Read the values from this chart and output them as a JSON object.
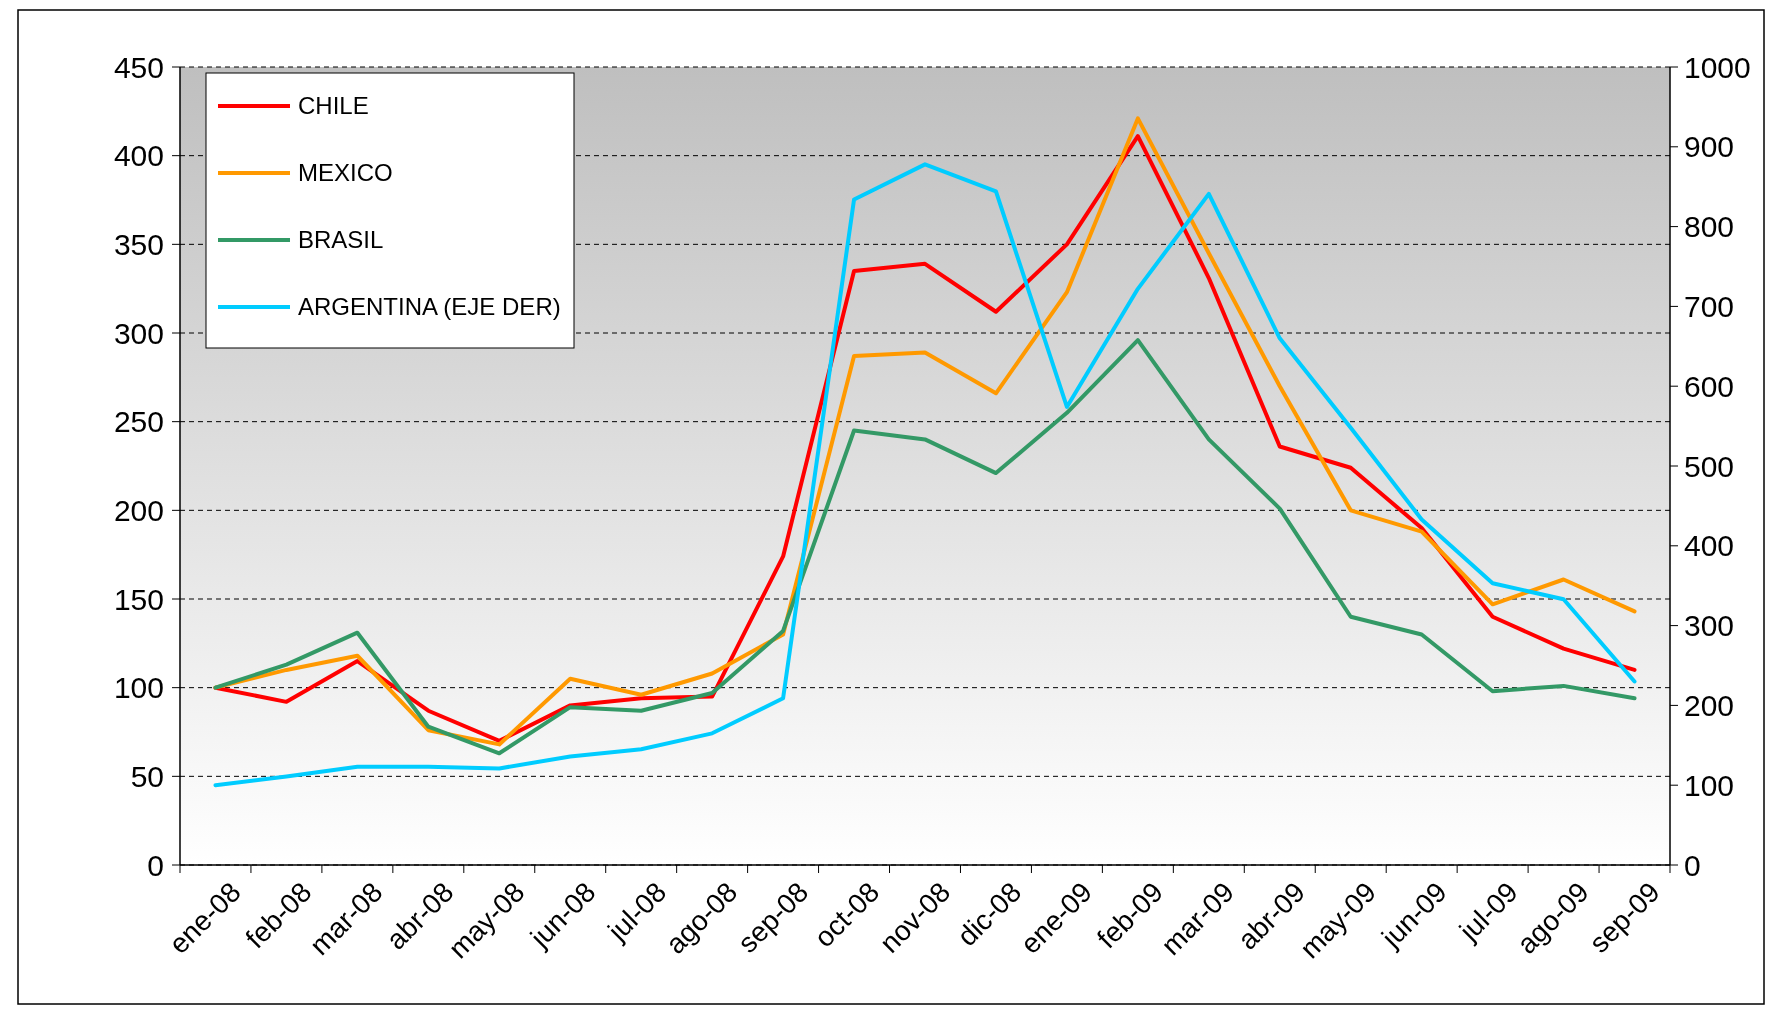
{
  "chart_data": {
    "type": "line",
    "categories": [
      "ene-08",
      "feb-08",
      "mar-08",
      "abr-08",
      "may-08",
      "jun-08",
      "jul-08",
      "ago-08",
      "sep-08",
      "oct-08",
      "nov-08",
      "dic-08",
      "ene-09",
      "feb-09",
      "mar-09",
      "abr-09",
      "may-09",
      "jun-09",
      "jul-09",
      "ago-09",
      "sep-09"
    ],
    "series": [
      {
        "name": "CHILE",
        "color": "#ff0000",
        "values": [
          100,
          92,
          115,
          87,
          70,
          90,
          94,
          95,
          174,
          335,
          339,
          312,
          350,
          411,
          331,
          236,
          224,
          190,
          140,
          122,
          110
        ]
      },
      {
        "name": "MEXICO",
        "color": "#ff9900",
        "values": [
          100,
          110,
          118,
          76,
          68,
          105,
          96,
          108,
          130,
          287,
          289,
          266,
          323,
          421,
          345,
          270,
          200,
          188,
          147,
          161,
          143
        ]
      },
      {
        "name": "BRASIL",
        "color": "#339966",
        "values": [
          100,
          113,
          131,
          78,
          63,
          89,
          87,
          97,
          132,
          245,
          240,
          221,
          255,
          296,
          240,
          201,
          140,
          130,
          98,
          101,
          94
        ]
      },
      {
        "name": "ARGENTINA (EJE DER)",
        "color": "#00ccff",
        "axis": "y2",
        "values": [
          100,
          111,
          123,
          123,
          121,
          136,
          145,
          165,
          209,
          834,
          878,
          844,
          574,
          722,
          841,
          660,
          548,
          433,
          353,
          333,
          230
        ]
      }
    ],
    "ylim": [
      0,
      450
    ],
    "yticks": [
      0,
      50,
      100,
      150,
      200,
      250,
      300,
      350,
      400,
      450
    ],
    "y2lim": [
      0,
      1000
    ],
    "y2ticks": [
      0,
      100,
      200,
      300,
      400,
      500,
      600,
      700,
      800,
      900,
      1000
    ],
    "grid": "y",
    "legend": "top left",
    "marker": "none",
    "line_style": "solid"
  }
}
